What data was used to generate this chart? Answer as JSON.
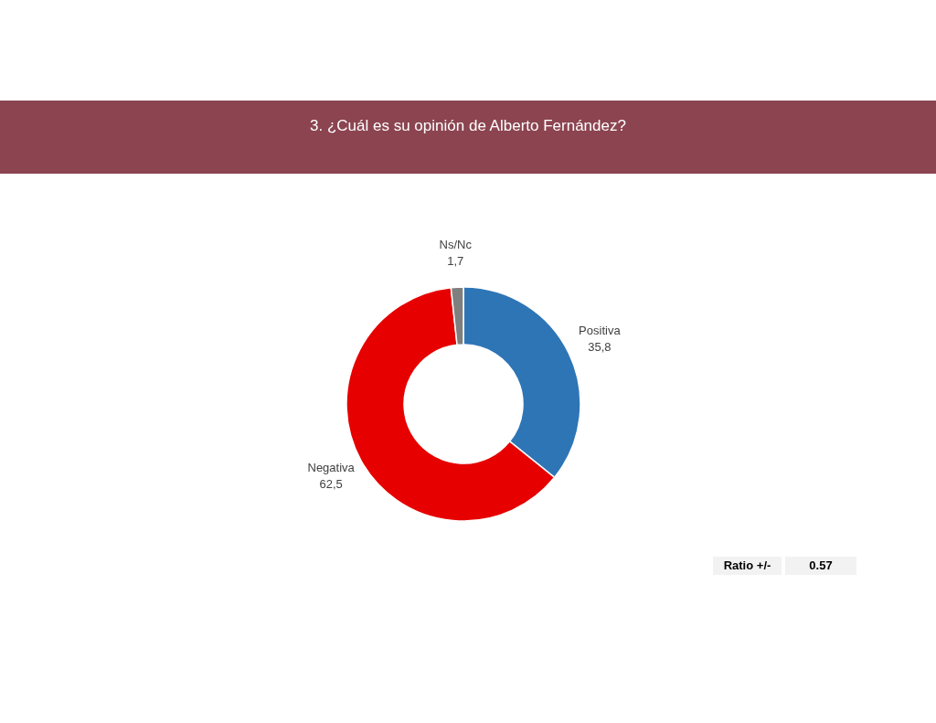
{
  "chart_data": {
    "type": "donut",
    "title": "3. ¿Cuál es su opinión de Alberto Fernández?",
    "categories": [
      "Positiva",
      "Negativa",
      "Ns/Nc"
    ],
    "values": [
      35.8,
      62.5,
      1.7
    ],
    "colors": [
      "#2e75b6",
      "#e60000",
      "#7f7f7f"
    ],
    "value_labels": [
      "35,8",
      "62,5",
      "1,7"
    ],
    "annotations": [
      "Ratio +/-",
      "0.57"
    ]
  }
}
